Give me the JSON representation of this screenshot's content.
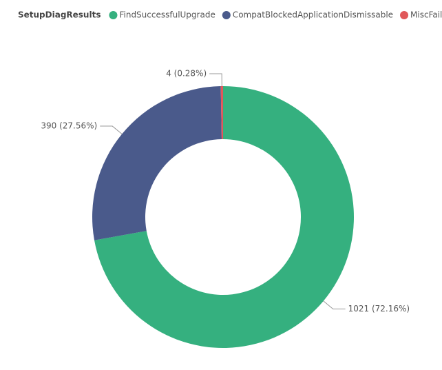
{
  "chart_data": {
    "type": "donut",
    "legend_title": "SetupDiagResults",
    "categories": [
      "FindSuccessfulUpgrade",
      "CompatBlockedApplicationDismissable",
      "MiscFailure"
    ],
    "values": [
      1021,
      390,
      4
    ],
    "value_labels": [
      "1021 (72.16%)",
      "390 (27.56%)",
      "4 (0.28%)"
    ],
    "colors": [
      "#35b07f",
      "#4a5a8b",
      "#e0585a"
    ]
  }
}
